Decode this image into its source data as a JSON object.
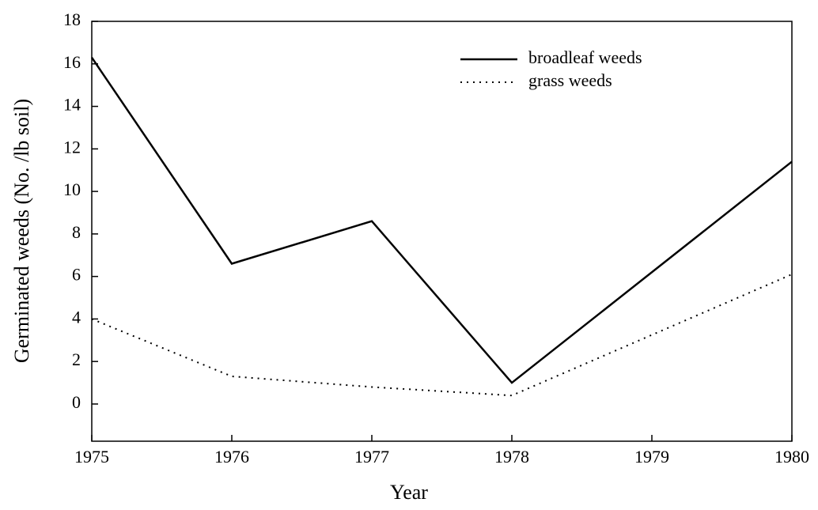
{
  "chart_data": {
    "type": "line",
    "x_label": "Year",
    "y_label": "Germinated weeds (No. /lb soil)",
    "x": [
      1975,
      1976,
      1977,
      1978,
      1980
    ],
    "series": [
      {
        "name": "broadleaf weeds",
        "color": "#000000",
        "dash": "solid",
        "values": [
          16.3,
          6.6,
          8.6,
          1.0,
          11.4
        ]
      },
      {
        "name": "grass weeds",
        "color": "#000000",
        "dash": "dotted",
        "values": [
          4.0,
          1.3,
          0.8,
          0.4,
          6.1
        ]
      }
    ],
    "xlim": [
      1975,
      1980
    ],
    "xticks": [
      1975,
      1976,
      1977,
      1978,
      1979,
      1980
    ],
    "ylim": [
      -1.75,
      18
    ],
    "yticks": [
      0,
      2,
      4,
      6,
      8,
      10,
      12,
      14,
      16,
      18
    ],
    "grid": false,
    "legend": "upper right"
  }
}
